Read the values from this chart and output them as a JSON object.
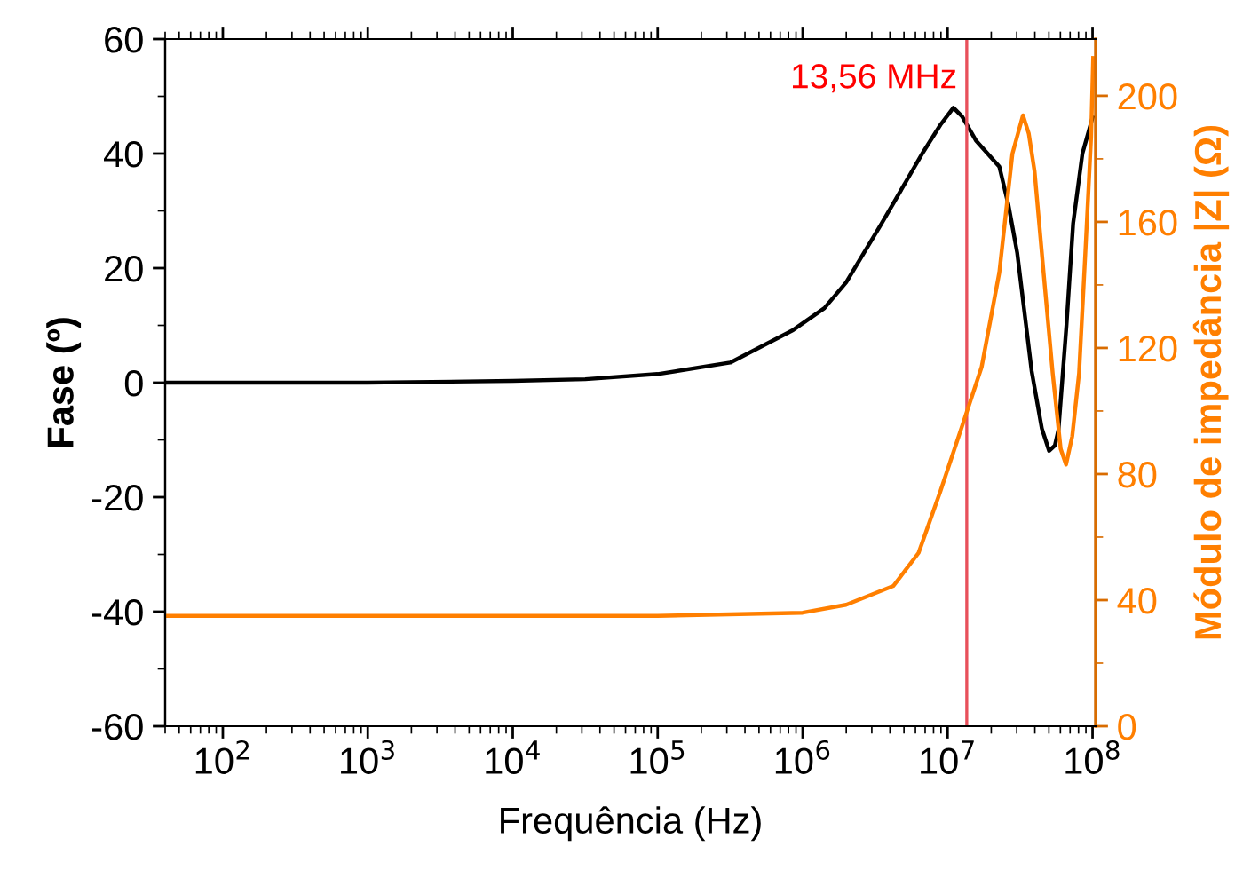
{
  "chart_data": {
    "type": "line",
    "xlabel": "Frequência (Hz)",
    "ylabel": "Fase (º)",
    "y2label": "Módulo de impedância |Z| (Ω)",
    "log": "x",
    "grid": false,
    "marker": "none",
    "line_style": "solid",
    "xlim": [
      40,
      105000000
    ],
    "xticks": [
      {
        "value": 100,
        "label": "10$^{2}$"
      },
      {
        "value": 1000,
        "label": "10$^{3}$"
      },
      {
        "value": 10000,
        "label": "10$^{4}$"
      },
      {
        "value": 100000,
        "label": "10$^{5}$"
      },
      {
        "value": 1000000,
        "label": "10$^{6}$"
      },
      {
        "value": 10000000,
        "label": "10$^{7}$"
      },
      {
        "value": 100000000,
        "label": "10$^{8}$"
      }
    ],
    "ylim": [
      -60,
      60
    ],
    "yticks": [
      -60,
      -40,
      -20,
      0,
      20,
      40,
      60
    ],
    "y2lim": [
      0,
      218
    ],
    "y2ticks": [
      0,
      40,
      80,
      120,
      160,
      200
    ],
    "ref_lines": [
      {
        "axis": "x",
        "value": 13560000,
        "label": "13,56 MHz",
        "color": "#e8505b"
      }
    ],
    "series": [
      {
        "color": "#000000",
        "x": [
          40,
          1000,
          10000,
          31623,
          100000,
          316228,
          860994,
          1412538,
          1995262,
          3507519,
          6760830,
          8912509,
          10964782,
          12589254,
          15667510,
          22750919,
          26302680,
          30199517,
          38018940,
          44668359,
          50118723,
          54954087,
          58210322,
          66069345,
          73451386,
          85113804,
          100000000
        ],
        "values": [
          0,
          0,
          0.3,
          0.6,
          1.5,
          3.5,
          9.2,
          13,
          17.5,
          27.8,
          40.2,
          45,
          48,
          46.5,
          42.3,
          37.7,
          31,
          22.7,
          2,
          -8,
          -11.9,
          -11,
          -8.2,
          10,
          27.8,
          40,
          46.3
        ]
      },
      {
        "color": "#ff7f00",
        "axis": "y2",
        "x": [
          40,
          100000,
          1000000,
          1995262,
          4226686,
          6309573,
          8912509,
          12971792,
          17179084,
          22750919,
          27989813,
          33113112,
          36307805,
          39810717,
          45708819,
          53088444,
          60255959,
          65614498,
          72443596,
          80723503,
          89125094,
          97723722,
          101000000
        ],
        "values": [
          35,
          35,
          36,
          38.5,
          44.5,
          55,
          74.5,
          97,
          114,
          144,
          181.6,
          193.8,
          188,
          176,
          145,
          112,
          88,
          83,
          92,
          112,
          150,
          187,
          212
        ]
      }
    ]
  }
}
